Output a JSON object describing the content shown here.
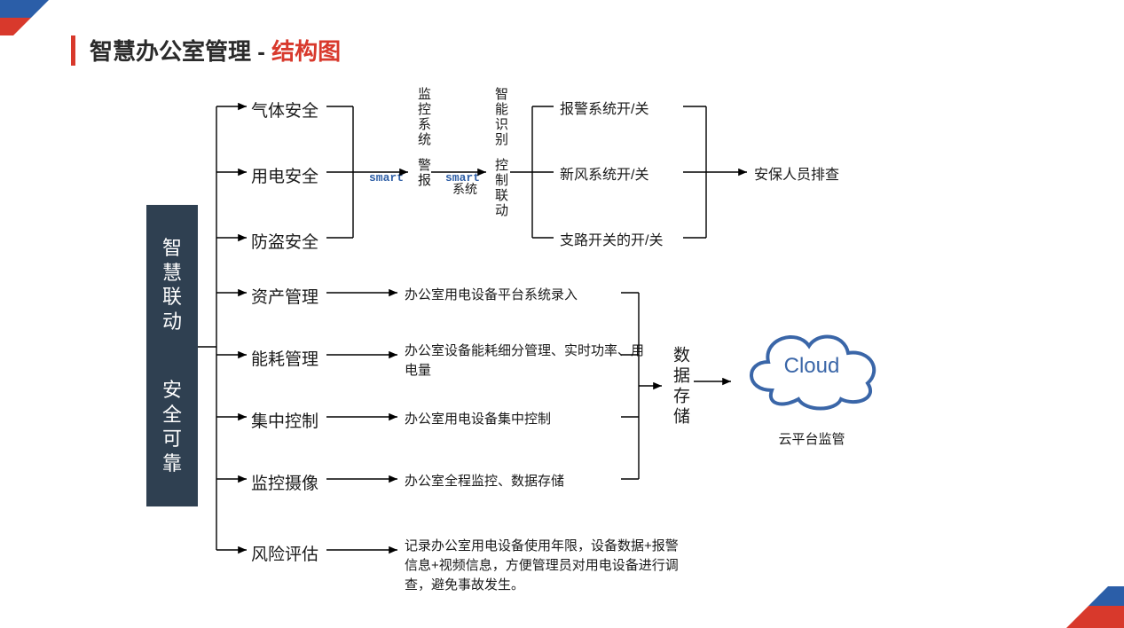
{
  "title": {
    "part1": "智慧办公室管理 - ",
    "part2": "结构图"
  },
  "root": {
    "seg1": "智慧联动",
    "seg2": "安全可靠"
  },
  "level1": {
    "gas": "气体安全",
    "power": "用电安全",
    "theft": "防盗安全",
    "asset": "资产管理",
    "energy": "能耗管理",
    "ctrl": "集中控制",
    "cctv": "监控摄像",
    "risk": "风险评估"
  },
  "vtext": {
    "monitor": "监控系统",
    "alarm": "警报",
    "sysword": "系统",
    "ai": "智能识别",
    "link": "控制联动",
    "storage": "数据存储"
  },
  "smart": "smart",
  "right": {
    "a": "报警系统开/关",
    "b": "新风系统开/关",
    "c": "支路开关的开/关",
    "inspect": "安保人员排查"
  },
  "desc": {
    "asset": "办公室用电设备平台系统录入",
    "energy": "办公室设备能耗细分管理、实时功率、用电量",
    "ctrl": "办公室用电设备集中控制",
    "cctv": "办公室全程监控、数据存储",
    "risk": "记录办公室用电设备使用年限，设备数据+报警信息+视频信息，方便管理员对用电设备进行调查，避免事故发生。"
  },
  "cloud": {
    "label": "Cloud",
    "caption": "云平台监管"
  },
  "colors": {
    "accent_red": "#d8392c",
    "accent_blue": "#2b5ea8",
    "root_bg": "#2f4051",
    "line": "#000000",
    "cloud_stroke": "#3a66a8"
  }
}
